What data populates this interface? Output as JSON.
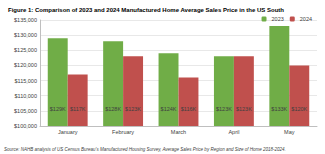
{
  "chart_data": {
    "type": "bar",
    "title": "Figure 1: Comparison of 2023 and 2024 Manufactured Home Average Sales Price in the US South",
    "source": "Source: NAHB analysis of US Census Bureau's Manufactured Housing Survey, Average Sales Price by Region and Size of Home 2018-2024.",
    "categories": [
      "January",
      "February",
      "March",
      "April",
      "May"
    ],
    "series": [
      {
        "name": "2023",
        "color": "#70ad47",
        "values": [
          129000,
          128000,
          124000,
          123000,
          133000
        ],
        "value_labels": [
          "$129K",
          "$128K",
          "$124K",
          "$123K",
          "$133K"
        ]
      },
      {
        "name": "2024",
        "color": "#c0504d",
        "values": [
          117000,
          123000,
          116000,
          123000,
          120000
        ],
        "value_labels": [
          "$117K",
          "$123K",
          "$116K",
          "$123K",
          "$120K"
        ]
      }
    ],
    "ylim": [
      100000,
      135000
    ],
    "yticks": [
      {
        "value": 100000,
        "label": "$100,000"
      },
      {
        "value": 105000,
        "label": "$105,000"
      },
      {
        "value": 110000,
        "label": "$110,000"
      },
      {
        "value": 115000,
        "label": "$115,000"
      },
      {
        "value": 120000,
        "label": "$120,000"
      },
      {
        "value": 125000,
        "label": "$125,000"
      },
      {
        "value": 130000,
        "label": "$130,000"
      },
      {
        "value": 135000,
        "label": "$135,000"
      }
    ],
    "grid": true,
    "legend": "top-right",
    "data_labels": true
  }
}
